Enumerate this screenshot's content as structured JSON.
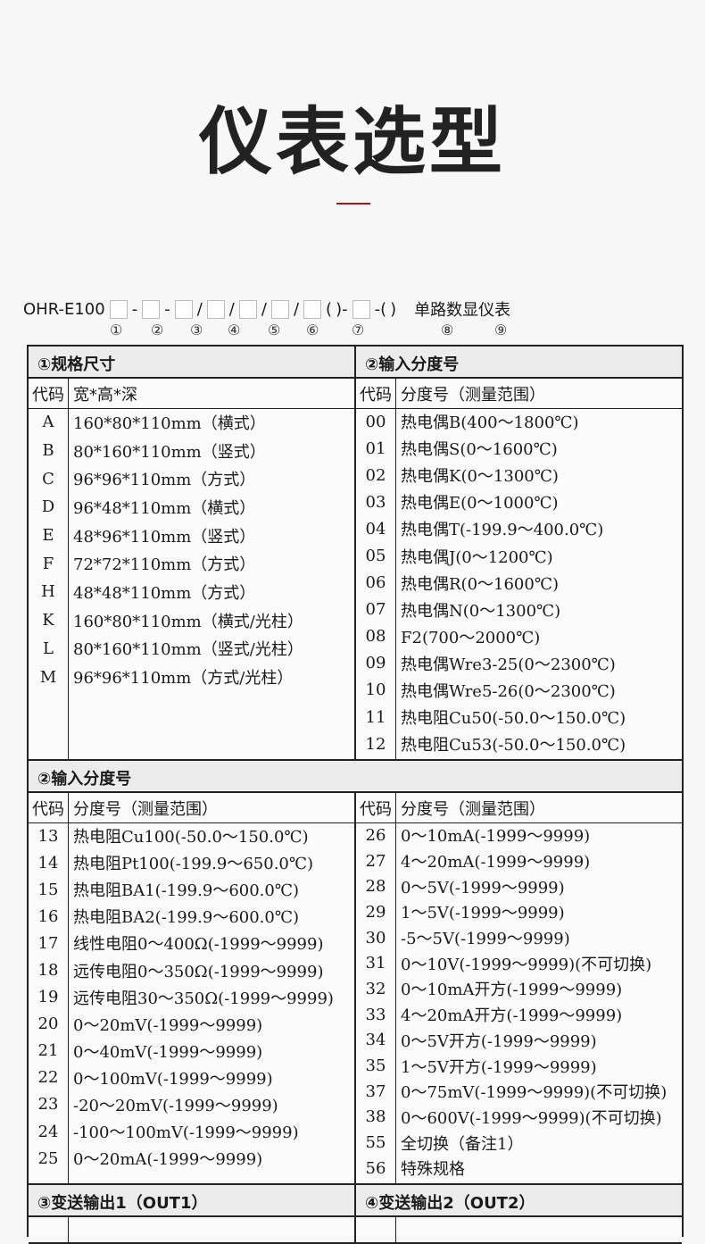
{
  "title": "仪表选型",
  "model": {
    "prefix": "OHR-E100",
    "suffix": "单路数显仪表",
    "seps": [
      "-",
      "-",
      "/",
      "/",
      "/",
      "/",
      "(",
      ")-",
      "-(",
      ")"
    ],
    "positions": [
      "①",
      "②",
      "③",
      "④",
      "⑤",
      "⑥",
      "⑦",
      "⑧",
      "⑨"
    ]
  },
  "section1": {
    "left_title": "①规格尺寸",
    "right_title": "②输入分度号",
    "left_header": [
      "代码",
      "宽*高*深"
    ],
    "right_header": [
      "代码",
      "分度号（测量范围）"
    ],
    "left_rows": [
      [
        "A",
        "160*80*110mm（横式）"
      ],
      [
        "B",
        "80*160*110mm（竖式）"
      ],
      [
        "C",
        "96*96*110mm（方式）"
      ],
      [
        "D",
        "96*48*110mm（横式）"
      ],
      [
        "E",
        "48*96*110mm（竖式）"
      ],
      [
        "F",
        "72*72*110mm（方式）"
      ],
      [
        "H",
        "48*48*110mm（方式）"
      ],
      [
        "K",
        "160*80*110mm（横式/光柱）"
      ],
      [
        "L",
        "80*160*110mm（竖式/光柱）"
      ],
      [
        "M",
        "96*96*110mm（方式/光柱）"
      ]
    ],
    "right_rows": [
      [
        "00",
        "热电偶B(400～1800℃)"
      ],
      [
        "01",
        "热电偶S(0～1600℃)"
      ],
      [
        "02",
        "热电偶K(0～1300℃)"
      ],
      [
        "03",
        "热电偶E(0～1000℃)"
      ],
      [
        "04",
        "热电偶T(-199.9～400.0℃)"
      ],
      [
        "05",
        "热电偶J(0～1200℃)"
      ],
      [
        "06",
        "热电偶R(0～1600℃)"
      ],
      [
        "07",
        "热电偶N(0～1300℃)"
      ],
      [
        "08",
        "F2(700～2000℃)"
      ],
      [
        "09",
        "热电偶Wre3-25(0～2300℃)"
      ],
      [
        "10",
        "热电偶Wre5-26(0～2300℃)"
      ],
      [
        "11",
        "热电阻Cu50(-50.0～150.0℃)"
      ],
      [
        "12",
        "热电阻Cu53(-50.0～150.0℃)"
      ]
    ]
  },
  "section2": {
    "title": "②输入分度号",
    "header": [
      "代码",
      "分度号（测量范围）"
    ],
    "left_rows": [
      [
        "13",
        "热电阻Cu100(-50.0～150.0℃)"
      ],
      [
        "14",
        "热电阻Pt100(-199.9～650.0℃)"
      ],
      [
        "15",
        "热电阻BA1(-199.9～600.0℃)"
      ],
      [
        "16",
        "热电阻BA2(-199.9～600.0℃)"
      ],
      [
        "17",
        "线性电阻0～400Ω(-1999～9999)"
      ],
      [
        "18",
        "远传电阻0～350Ω(-1999～9999)"
      ],
      [
        "19",
        "远传电阻30～350Ω(-1999～9999)"
      ],
      [
        "20",
        "0～20mV(-1999～9999)"
      ],
      [
        "21",
        "0～40mV(-1999～9999)"
      ],
      [
        "22",
        "0～100mV(-1999～9999)"
      ],
      [
        "23",
        "-20～20mV(-1999～9999)"
      ],
      [
        "24",
        "-100～100mV(-1999～9999)"
      ],
      [
        "25",
        "0～20mA(-1999～9999)"
      ]
    ],
    "right_rows": [
      [
        "26",
        "0～10mA(-1999～9999)"
      ],
      [
        "27",
        "4～20mA(-1999～9999)"
      ],
      [
        "28",
        "0～5V(-1999～9999)"
      ],
      [
        "29",
        "1～5V(-1999～9999)"
      ],
      [
        "30",
        "-5～5V(-1999～9999)"
      ],
      [
        "31",
        "0～10V(-1999～9999)(不可切换)"
      ],
      [
        "32",
        "0～10mA开方(-1999～9999)"
      ],
      [
        "33",
        "4～20mA开方(-1999～9999)"
      ],
      [
        "34",
        "0～5V开方(-1999～9999)"
      ],
      [
        "35",
        "1～5V开方(-1999～9999)"
      ],
      [
        "37",
        "0～75mV(-1999～9999)(不可切换)"
      ],
      [
        "38",
        "0～600V(-1999～9999)(不可切换)"
      ],
      [
        "55",
        "全切换（备注1）"
      ],
      [
        "56",
        "特殊规格"
      ]
    ]
  },
  "section3": {
    "left_title": "③变送输出1（OUT1）",
    "right_title": "④变送输出2（OUT2）"
  }
}
